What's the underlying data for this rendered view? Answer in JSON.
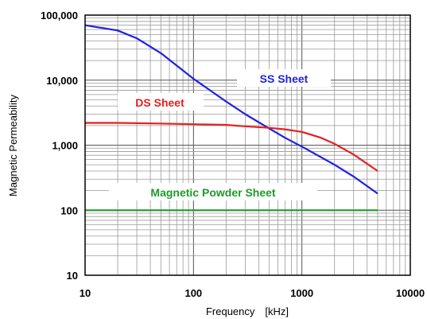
{
  "chart_data": {
    "type": "line",
    "title": "",
    "xlabel": "Frequency　[kHz]",
    "ylabel": "Magnetic Permeability",
    "x_scale": "log",
    "y_scale": "log",
    "xlim": [
      10,
      10000
    ],
    "ylim": [
      10,
      100000
    ],
    "grid": true,
    "x_ticks": [
      {
        "value": 10,
        "label": "10"
      },
      {
        "value": 100,
        "label": "100"
      },
      {
        "value": 1000,
        "label": "1000"
      },
      {
        "value": 10000,
        "label": "10000"
      }
    ],
    "y_ticks": [
      {
        "value": 10,
        "label": "10"
      },
      {
        "value": 100,
        "label": "100"
      },
      {
        "value": 1000,
        "label": "1,000"
      },
      {
        "value": 10000,
        "label": "10,000"
      },
      {
        "value": 100000,
        "label": "100,000"
      }
    ],
    "series": [
      {
        "name": "SS Sheet",
        "color": "#1f1fe6",
        "x": [
          10,
          20,
          30,
          50,
          100,
          200,
          300,
          500,
          700,
          1000,
          2000,
          3000,
          5000
        ],
        "y": [
          70000,
          58000,
          44000,
          26000,
          10500,
          4700,
          3000,
          1800,
          1300,
          950,
          500,
          330,
          180
        ]
      },
      {
        "name": "DS Sheet",
        "color": "#e61f1f",
        "x": [
          10,
          20,
          50,
          100,
          200,
          300,
          500,
          700,
          1000,
          1500,
          2000,
          3000,
          5000
        ],
        "y": [
          2200,
          2200,
          2150,
          2100,
          2050,
          1950,
          1850,
          1750,
          1600,
          1300,
          1050,
          720,
          400
        ]
      },
      {
        "name": "Magnetic Powder Sheet",
        "color": "#1f9a2a",
        "x": [
          10,
          100,
          1000,
          5000
        ],
        "y": [
          100,
          100,
          100,
          100
        ]
      }
    ]
  }
}
